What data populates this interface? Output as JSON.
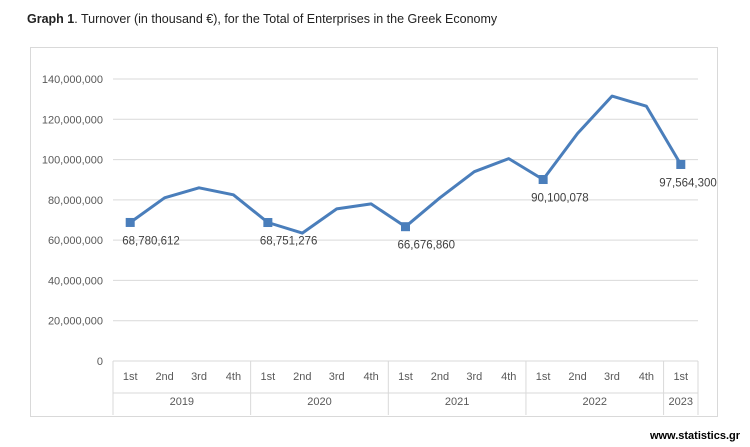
{
  "title": {
    "bold": "Graph 1",
    "rest": ". Turnover (in thousand €), for the Total of Enterprises in the Greek Economy"
  },
  "watermark": "www.statistics.gr",
  "chart_data": {
    "type": "line",
    "title": "Graph 1. Turnover (in thousand €), for the Total of Enterprises in the Greek Economy",
    "xlabel": "",
    "ylabel": "",
    "ylim": [
      0,
      140000000
    ],
    "yticks": [
      0,
      20000000,
      40000000,
      60000000,
      80000000,
      100000000,
      120000000,
      140000000
    ],
    "ytick_labels": [
      "0",
      "20,000,000",
      "40,000,000",
      "60,000,000",
      "80,000,000",
      "100,000,000",
      "120,000,000",
      "140,000,000"
    ],
    "grid": true,
    "categories": [
      "1st",
      "2nd",
      "3rd",
      "4th",
      "1st",
      "2nd",
      "3rd",
      "4th",
      "1st",
      "2nd",
      "3rd",
      "4th",
      "1st",
      "2nd",
      "3rd",
      "4th",
      "1st"
    ],
    "years": [
      {
        "label": "2019",
        "count": 4
      },
      {
        "label": "2020",
        "count": 4
      },
      {
        "label": "2021",
        "count": 4
      },
      {
        "label": "2022",
        "count": 4
      },
      {
        "label": "2023",
        "count": 1
      }
    ],
    "series": [
      {
        "name": "Turnover",
        "color": "#4a7ebb",
        "values": [
          68780612,
          81000000,
          86000000,
          82500000,
          68751276,
          63500000,
          75500000,
          78000000,
          66676860,
          81000000,
          94000000,
          100500000,
          90100078,
          113000000,
          131500000,
          126500000,
          97564300
        ]
      }
    ],
    "markers": [
      0,
      4,
      8,
      12,
      16
    ],
    "data_labels": [
      {
        "index": 0,
        "text": "68,780,612"
      },
      {
        "index": 4,
        "text": "68,751,276"
      },
      {
        "index": 8,
        "text": "66,676,860"
      },
      {
        "index": 12,
        "text": "90,100,078"
      },
      {
        "index": 16,
        "text": "97,564,300"
      }
    ]
  }
}
